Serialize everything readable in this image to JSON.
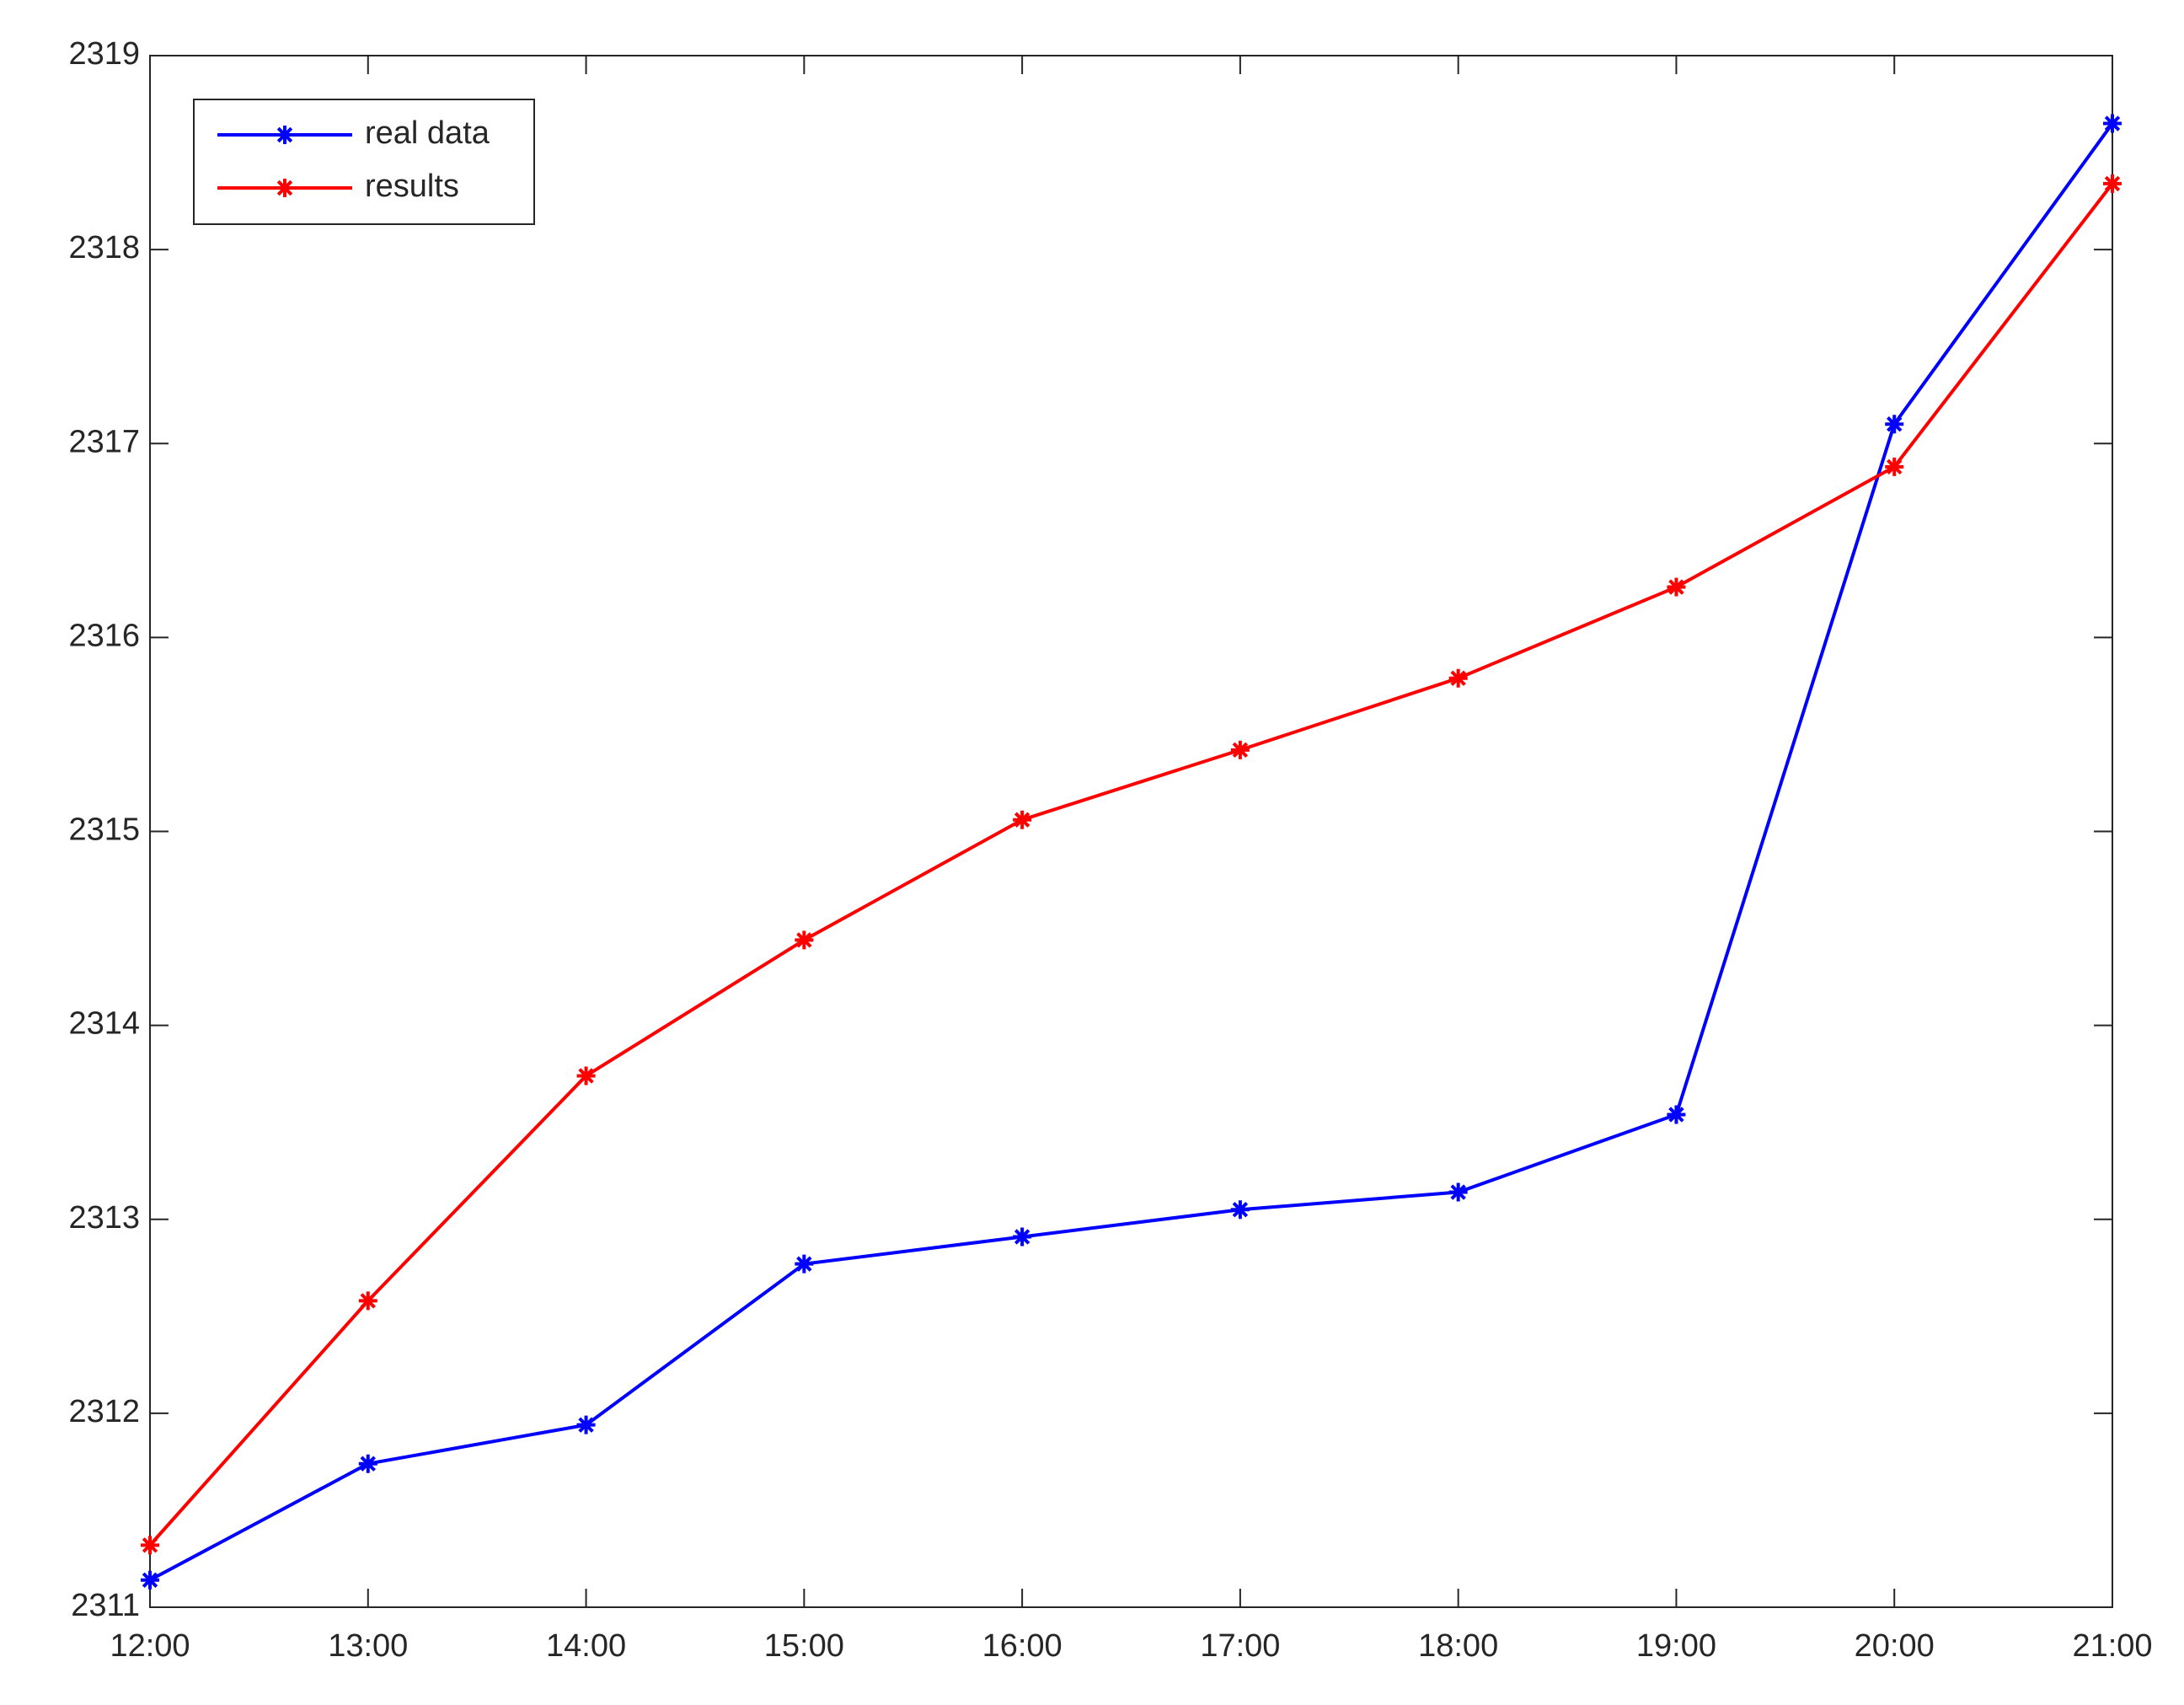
{
  "chart_data": {
    "type": "line",
    "categories": [
      "12:00",
      "13:00",
      "14:00",
      "15:00",
      "16:00",
      "17:00",
      "18:00",
      "19:00",
      "20:00",
      "21:00"
    ],
    "series": [
      {
        "name": "real data",
        "color": "#0000ff",
        "values": [
          2311.14,
          2311.74,
          2311.94,
          2312.77,
          2312.91,
          2313.05,
          2313.14,
          2313.54,
          2317.1,
          2318.65
        ]
      },
      {
        "name": "results",
        "color": "#ff0000",
        "values": [
          2311.32,
          2312.58,
          2313.74,
          2314.44,
          2315.06,
          2315.42,
          2315.79,
          2316.26,
          2316.88,
          2318.34
        ]
      }
    ],
    "ylim": [
      2311,
      2319
    ],
    "yticks": [
      2311,
      2312,
      2313,
      2314,
      2315,
      2316,
      2317,
      2318,
      2319
    ],
    "grid": false,
    "legend": "upper-left"
  }
}
